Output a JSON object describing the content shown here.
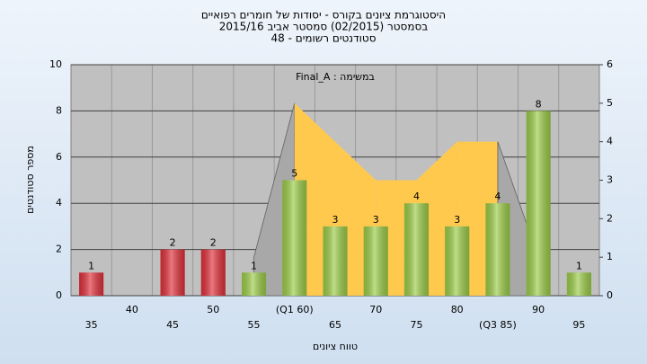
{
  "chart_data": {
    "type": "bar",
    "title": [
      "היסטוגרמת ציונים בקורס - יסודות של חומרים רפואיים",
      "בסמסטר (02/2015) סמסטר אביב 2015/16",
      "סטודנטים רשומים - 48"
    ],
    "annotation": "במשימה : Final_A",
    "x_label": "טווח ציונים",
    "y_label": "מספר סטודנטים",
    "categories": [
      "35",
      "40",
      "45",
      "50",
      "55",
      "(Q1 60)",
      "65",
      "70",
      "75",
      "80",
      "(Q3 85)",
      "90",
      "95"
    ],
    "series": [
      {
        "values": [
          1,
          0,
          2,
          2,
          1,
          5,
          3,
          3,
          4,
          3,
          4,
          8,
          1
        ],
        "colors": [
          "#e0303a",
          "#e0303a",
          "#e0303a",
          "#e0303a",
          "#9ccc48",
          "#9ccc48",
          "#9ccc48",
          "#9ccc48",
          "#9ccc48",
          "#9ccc48",
          "#9ccc48",
          "#9ccc48",
          "#9ccc48"
        ]
      },
      {
        "type": "area",
        "axis": "y2",
        "color": "#ffc94d",
        "edge_color": "#a8a8a8",
        "values": [
          null,
          null,
          null,
          null,
          1,
          5,
          4,
          3,
          3,
          4,
          4,
          1,
          null
        ]
      }
    ],
    "ylim": [
      0,
      10
    ],
    "yticks": [
      0,
      2,
      4,
      6,
      8,
      10
    ],
    "y2lim": [
      0,
      6
    ],
    "y2ticks": [
      0,
      1,
      2,
      3,
      4,
      5,
      6
    ],
    "grid": true
  }
}
